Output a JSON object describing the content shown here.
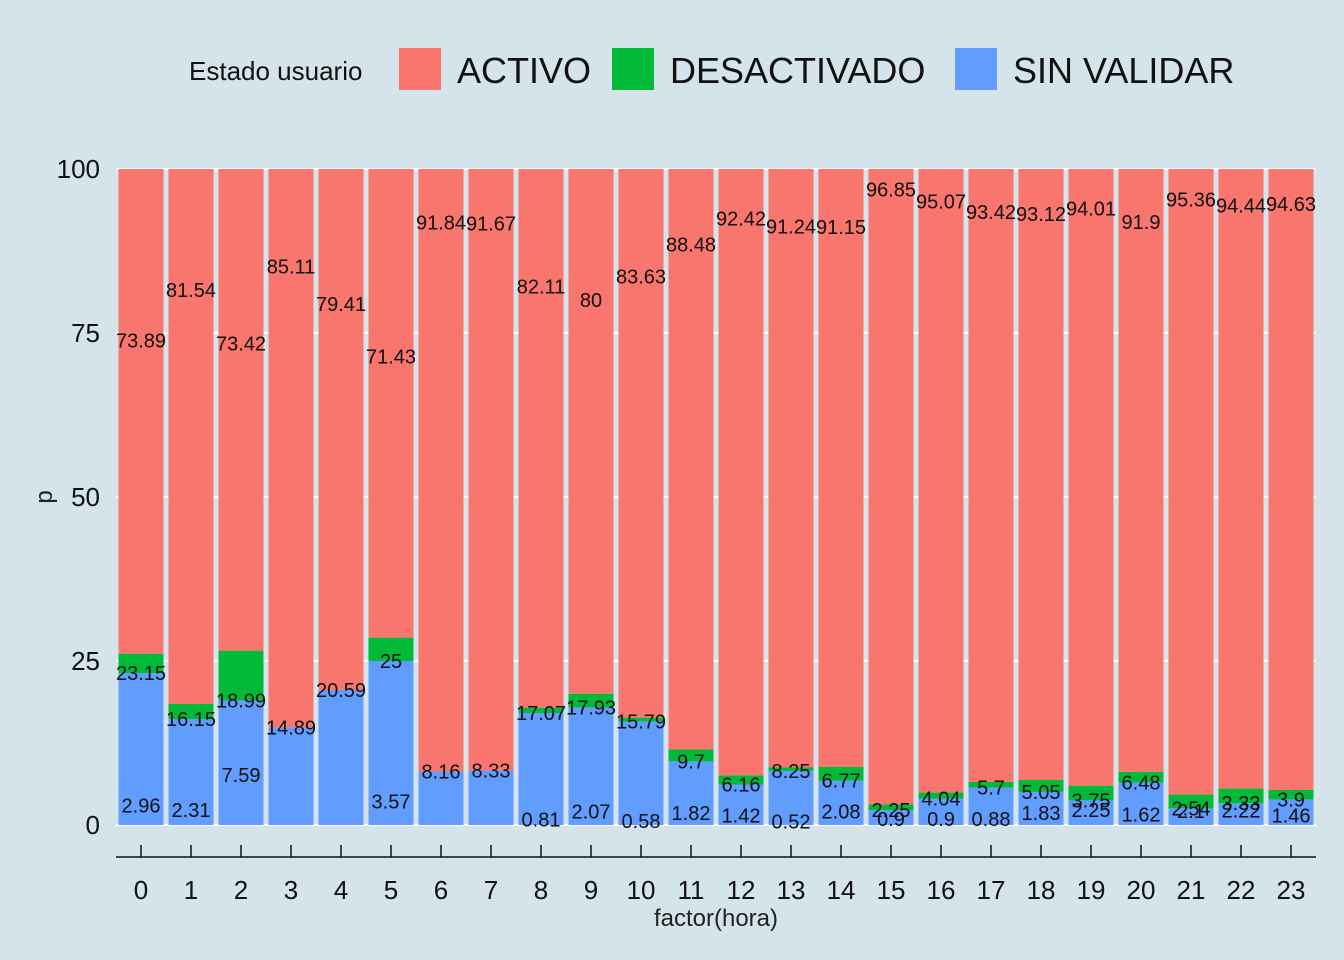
{
  "chart_data": {
    "type": "bar",
    "stacked": true,
    "title": "",
    "xlabel": "factor(hora)",
    "ylabel": "p",
    "ylim": [
      0,
      100
    ],
    "yticks": [
      0,
      25,
      50,
      75,
      100
    ],
    "legend_title": "Estado usuario",
    "legend_position": "top",
    "categories": [
      "0",
      "1",
      "2",
      "3",
      "4",
      "5",
      "6",
      "7",
      "8",
      "9",
      "10",
      "11",
      "12",
      "13",
      "14",
      "15",
      "16",
      "17",
      "18",
      "19",
      "20",
      "21",
      "22",
      "23"
    ],
    "series": [
      {
        "name": "SIN VALIDAR",
        "color": "#619cff",
        "values": [
          23.15,
          16.15,
          18.99,
          14.89,
          20.59,
          25,
          8.16,
          8.33,
          17.07,
          17.93,
          15.79,
          9.7,
          6.16,
          8.25,
          6.77,
          2.25,
          4.04,
          5.7,
          5.05,
          3.75,
          6.48,
          2.54,
          3.33,
          3.9
        ]
      },
      {
        "name": "DESACTIVADO",
        "color": "#00ba38",
        "values": [
          2.96,
          2.31,
          7.59,
          null,
          null,
          3.57,
          null,
          null,
          0.81,
          2.07,
          0.58,
          1.82,
          1.42,
          0.52,
          2.08,
          0.9,
          0.9,
          0.88,
          1.83,
          2.25,
          1.62,
          2.1,
          2.22,
          1.46
        ]
      },
      {
        "name": "ACTIVO",
        "color": "#f8766d",
        "values": [
          73.89,
          81.54,
          73.42,
          85.11,
          79.41,
          71.43,
          91.84,
          91.67,
          82.11,
          80,
          83.63,
          88.48,
          92.42,
          91.24,
          91.15,
          96.85,
          95.07,
          93.42,
          93.12,
          94.01,
          91.9,
          95.36,
          94.44,
          94.63
        ]
      }
    ]
  }
}
